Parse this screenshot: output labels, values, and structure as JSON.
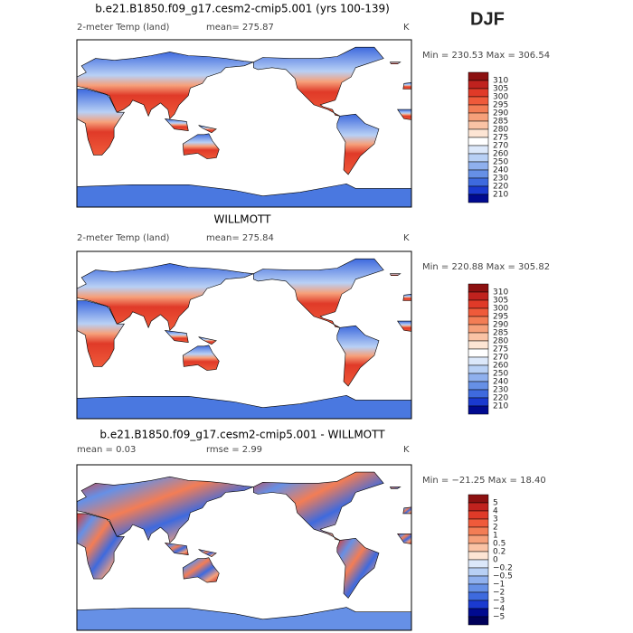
{
  "season": "DJF",
  "panels": [
    {
      "title": "b.e21.B1850.f09_g17.cesm2-cmip5.001 (yrs 100-139)",
      "left_label": "2-meter Temp (land)",
      "center_label": "mean= 275.87",
      "right_label": "K",
      "min_max": "Min = 230.53 Max = 306.54",
      "colorbar": {
        "labels": [
          "310",
          "305",
          "300",
          "295",
          "290",
          "285",
          "280",
          "275",
          "270",
          "260",
          "250",
          "240",
          "230",
          "220",
          "210"
        ],
        "colors": [
          "#8c1010",
          "#c0221e",
          "#e03a28",
          "#ef5a3a",
          "#f37d55",
          "#f6a07a",
          "#fac3a5",
          "#fde5d4",
          "#ffffff",
          "#dce8fa",
          "#b8d0f5",
          "#8fb0ee",
          "#6690e6",
          "#3e6ade",
          "#1a3ad0",
          "#000a90"
        ]
      }
    },
    {
      "title": "WILLMOTT",
      "left_label": "2-meter Temp (land)",
      "center_label": "mean= 275.84",
      "right_label": "K",
      "min_max": "Min = 220.88 Max = 305.82",
      "colorbar": {
        "labels": [
          "310",
          "305",
          "300",
          "295",
          "290",
          "285",
          "280",
          "275",
          "270",
          "260",
          "250",
          "240",
          "230",
          "220",
          "210"
        ],
        "colors": [
          "#8c1010",
          "#c0221e",
          "#e03a28",
          "#ef5a3a",
          "#f37d55",
          "#f6a07a",
          "#fac3a5",
          "#fde5d4",
          "#ffffff",
          "#dce8fa",
          "#b8d0f5",
          "#8fb0ee",
          "#6690e6",
          "#3e6ade",
          "#1a3ad0",
          "#000a90"
        ]
      }
    },
    {
      "title": "b.e21.B1850.f09_g17.cesm2-cmip5.001 - WILLMOTT",
      "left_label": "mean =    0.03",
      "center_label": "rmse =    2.99",
      "right_label": "K",
      "min_max": "Min = −21.25 Max =   18.40",
      "colorbar": {
        "labels": [
          "5",
          "4",
          "3",
          "2",
          "1",
          "0.5",
          "0.2",
          "0",
          "−0.2",
          "−0.5",
          "−1",
          "−2",
          "−3",
          "−4",
          "−5"
        ],
        "colors": [
          "#8c1010",
          "#c0221e",
          "#e03a28",
          "#ef5a3a",
          "#f37d55",
          "#f6a07a",
          "#fac3a5",
          "#fde5d4",
          "#dce8fa",
          "#b8d0f5",
          "#8fb0ee",
          "#6690e6",
          "#3e6ade",
          "#1a3ad0",
          "#000a90",
          "#00005a"
        ]
      }
    }
  ]
}
